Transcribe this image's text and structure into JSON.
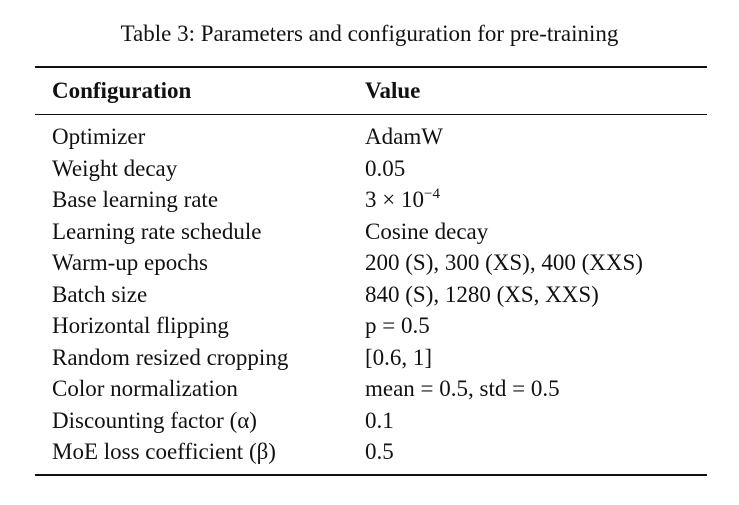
{
  "caption": "Table 3: Parameters and configuration for pre-training",
  "table": {
    "header": [
      "Configuration",
      "Value"
    ],
    "rows": [
      [
        "Optimizer",
        "AdamW"
      ],
      [
        "Weight decay",
        "0.05"
      ],
      [
        "Base learning rate",
        {
          "base": "3 × 10",
          "exponent": "−4"
        }
      ],
      [
        "Learning rate schedule",
        "Cosine decay"
      ],
      [
        "Warm-up epochs",
        "200 (S), 300 (XS), 400 (XXS)"
      ],
      [
        "Batch size",
        "840 (S), 1280 (XS, XXS)"
      ],
      [
        "Horizontal flipping",
        "p = 0.5"
      ],
      [
        "Random resized cropping",
        "[0.6, 1]"
      ],
      [
        "Color normalization",
        "mean = 0.5, std = 0.5"
      ],
      [
        "Discounting factor (α)",
        "0.1"
      ],
      [
        "MoE loss coefficient (β)",
        "0.5"
      ]
    ]
  }
}
